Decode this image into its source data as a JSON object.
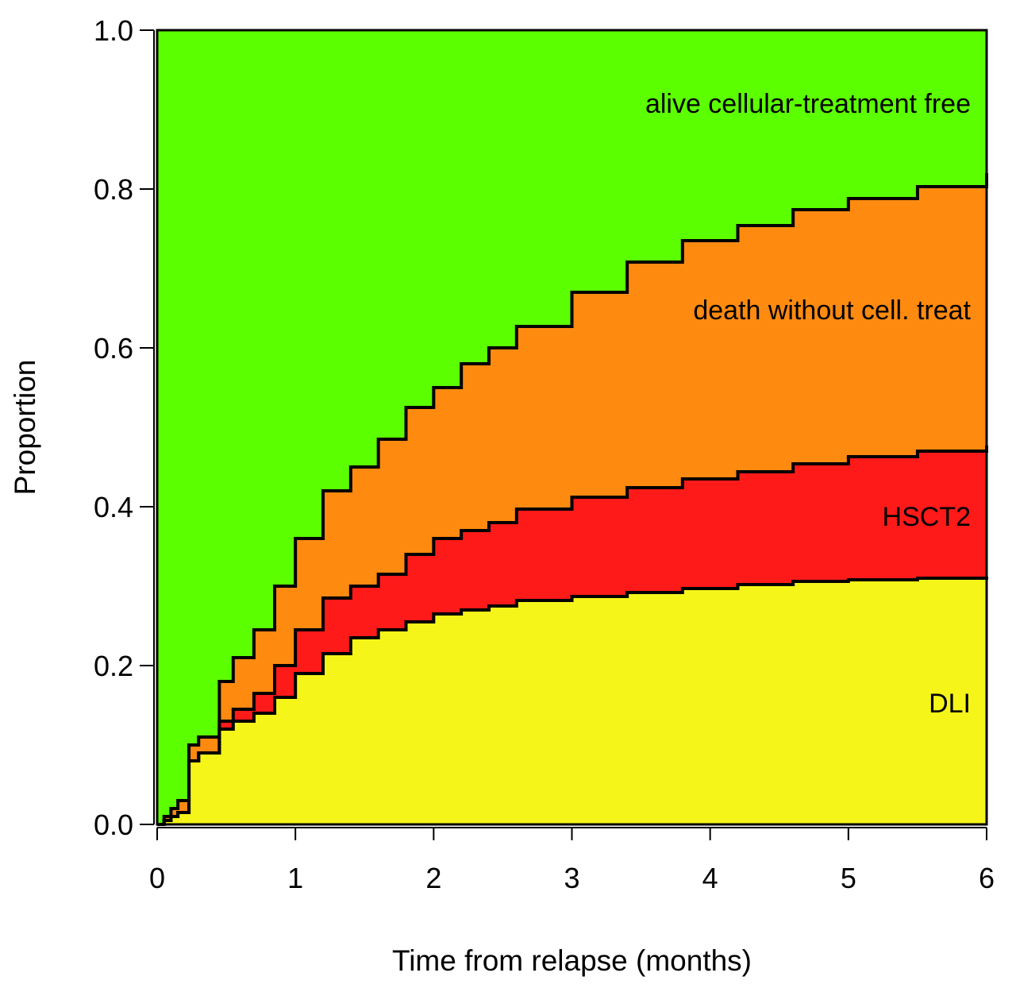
{
  "chart_data": {
    "type": "area",
    "title": "",
    "xlabel": "Time from relapse (months)",
    "ylabel": "Proportion",
    "xlim": [
      0,
      6
    ],
    "ylim": [
      0,
      1
    ],
    "x_ticks": [
      "0",
      "1",
      "2",
      "3",
      "4",
      "5",
      "6"
    ],
    "y_ticks": [
      "0.0",
      "0.2",
      "0.4",
      "0.6",
      "0.8",
      "1.0"
    ],
    "stacked": true,
    "curve": "step",
    "series": [
      {
        "name": "DLI",
        "color": "#F5F51A",
        "label": "DLI",
        "x": [
          0,
          0.05,
          0.1,
          0.15,
          0.23,
          0.23,
          0.3,
          0.45,
          0.45,
          0.55,
          0.7,
          0.85,
          1.0,
          1.2,
          1.4,
          1.6,
          1.8,
          2.0,
          2.2,
          2.4,
          2.6,
          3.0,
          3.4,
          3.8,
          4.2,
          4.6,
          5.0,
          5.5,
          6.0
        ],
        "values": [
          0,
          0.005,
          0.01,
          0.015,
          0.02,
          0.08,
          0.09,
          0.1,
          0.12,
          0.13,
          0.14,
          0.16,
          0.19,
          0.215,
          0.235,
          0.245,
          0.255,
          0.265,
          0.27,
          0.275,
          0.282,
          0.287,
          0.292,
          0.297,
          0.302,
          0.306,
          0.308,
          0.31,
          0.312
        ]
      },
      {
        "name": "HSCT2",
        "color": "#FF1A1A",
        "label": "HSCT2",
        "x": [
          0,
          0.05,
          0.1,
          0.15,
          0.23,
          0.23,
          0.3,
          0.45,
          0.45,
          0.55,
          0.7,
          0.85,
          1.0,
          1.2,
          1.4,
          1.6,
          1.8,
          2.0,
          2.2,
          2.4,
          2.6,
          3.0,
          3.4,
          3.8,
          4.2,
          4.6,
          5.0,
          5.5,
          6.0
        ],
        "values": [
          0,
          0,
          0,
          0,
          0,
          0,
          0,
          0.005,
          0.01,
          0.015,
          0.025,
          0.04,
          0.055,
          0.07,
          0.065,
          0.07,
          0.085,
          0.095,
          0.1,
          0.105,
          0.115,
          0.125,
          0.132,
          0.138,
          0.142,
          0.148,
          0.155,
          0.16,
          0.165
        ]
      },
      {
        "name": "death without cell. treat",
        "color": "#FF8A10",
        "label": "death without cell. treat",
        "x": [
          0,
          0.05,
          0.1,
          0.15,
          0.23,
          0.23,
          0.3,
          0.45,
          0.45,
          0.55,
          0.7,
          0.85,
          1.0,
          1.2,
          1.4,
          1.6,
          1.8,
          2.0,
          2.2,
          2.4,
          2.6,
          3.0,
          3.4,
          3.8,
          4.2,
          4.6,
          5.0,
          5.5,
          6.0
        ],
        "values": [
          0,
          0.005,
          0.01,
          0.015,
          0.02,
          0.02,
          0.02,
          0.025,
          0.05,
          0.065,
          0.08,
          0.1,
          0.115,
          0.135,
          0.15,
          0.17,
          0.185,
          0.19,
          0.21,
          0.22,
          0.23,
          0.258,
          0.284,
          0.3,
          0.31,
          0.32,
          0.325,
          0.333,
          0.343
        ]
      },
      {
        "name": "alive cellular-treatment free",
        "color": "#5CFF00",
        "label": "alive cellular-treatment free",
        "remainder": true
      }
    ]
  }
}
